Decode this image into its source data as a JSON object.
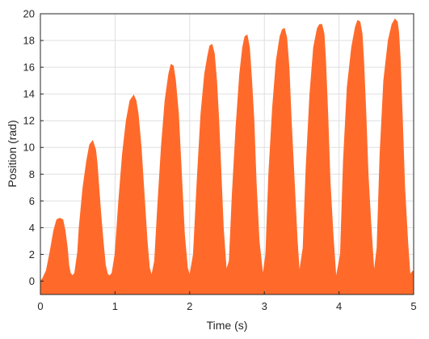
{
  "chart_data": {
    "type": "area",
    "xlabel": "Time (s)",
    "ylabel": "Position  (rad)",
    "xlim": [
      0,
      5
    ],
    "ylim": [
      -1,
      20
    ],
    "xticks": [
      0,
      1,
      2,
      3,
      4,
      5
    ],
    "yticks": [
      0,
      2,
      4,
      6,
      8,
      10,
      12,
      14,
      16,
      18,
      20
    ],
    "grid": true,
    "legend": "none",
    "color": "#ff6a2b",
    "series": [
      {
        "x": [
          0,
          0.03,
          0.08,
          0.13,
          0.18,
          0.22,
          0.26,
          0.3,
          0.33,
          0.36,
          0.38,
          0.4,
          0.43,
          0.46,
          0.5,
          0.52,
          0.57,
          0.62,
          0.66,
          0.7,
          0.74,
          0.76,
          0.78,
          0.81,
          0.84,
          0.87,
          0.9,
          0.93,
          0.96,
          1.0,
          1.05,
          1.1,
          1.15,
          1.2,
          1.25,
          1.28,
          1.31,
          1.35,
          1.39,
          1.43,
          1.46,
          1.49,
          1.53,
          1.57,
          1.62,
          1.67,
          1.72,
          1.75,
          1.78,
          1.81,
          1.85,
          1.89,
          1.93,
          1.97,
          2.0,
          2.05,
          2.1,
          2.15,
          2.2,
          2.24,
          2.27,
          2.3,
          2.33,
          2.36,
          2.39,
          2.42,
          2.45,
          2.49,
          2.53,
          2.57,
          2.62,
          2.67,
          2.71,
          2.74,
          2.77,
          2.8,
          2.83,
          2.86,
          2.89,
          2.93,
          2.98,
          3.02,
          3.06,
          3.11,
          3.16,
          3.21,
          3.24,
          3.27,
          3.3,
          3.33,
          3.36,
          3.4,
          3.44,
          3.47,
          3.52,
          3.56,
          3.61,
          3.66,
          3.71,
          3.74,
          3.77,
          3.8,
          3.82,
          3.85,
          3.88,
          3.92,
          3.96,
          4.02,
          4.06,
          4.11,
          4.17,
          4.22,
          4.25,
          4.28,
          4.31,
          4.33,
          4.36,
          4.39,
          4.43,
          4.47,
          4.51,
          4.55,
          4.6,
          4.66,
          4.71,
          4.75,
          4.78,
          4.8,
          4.82,
          4.85,
          4.88,
          4.92,
          4.95,
          5.0
        ],
        "y": [
          0,
          0.2,
          0.8,
          2.2,
          3.8,
          4.6,
          4.7,
          4.6,
          3.8,
          2.5,
          1.2,
          0.6,
          0.4,
          0.6,
          2.2,
          4.0,
          7.0,
          9.0,
          10.2,
          10.5,
          9.8,
          8.8,
          7.2,
          5.0,
          3.0,
          1.2,
          0.5,
          0.4,
          0.6,
          2.0,
          6.0,
          9.5,
          12.0,
          13.5,
          13.9,
          13.5,
          12.5,
          10.0,
          6.5,
          3.0,
          1.0,
          0.4,
          1.5,
          5.5,
          10.0,
          13.5,
          15.5,
          16.2,
          16.1,
          15.0,
          12.5,
          8.0,
          3.5,
          1.0,
          0.4,
          2.0,
          7.5,
          12.5,
          15.5,
          16.8,
          17.6,
          17.7,
          17.0,
          15.0,
          12.0,
          8.0,
          4.0,
          0.8,
          1.5,
          6.5,
          11.5,
          15.5,
          17.5,
          18.3,
          18.4,
          17.5,
          15.0,
          12.0,
          7.5,
          3.0,
          0.4,
          2.0,
          8.0,
          13.0,
          16.5,
          18.3,
          18.8,
          18.9,
          18.2,
          16.0,
          12.0,
          7.5,
          3.0,
          0.6,
          2.5,
          8.5,
          14.0,
          17.5,
          18.9,
          19.2,
          19.2,
          18.5,
          16.5,
          12.5,
          7.5,
          3.5,
          0.2,
          2.0,
          9.0,
          14.5,
          17.5,
          19.0,
          19.5,
          19.4,
          18.5,
          16.5,
          12.5,
          8.0,
          4.0,
          0.6,
          2.5,
          9.5,
          15.0,
          18.0,
          19.2,
          19.6,
          19.4,
          18.6,
          16.5,
          12.0,
          7.0,
          3.0,
          0.5,
          0.8
        ]
      }
    ]
  }
}
